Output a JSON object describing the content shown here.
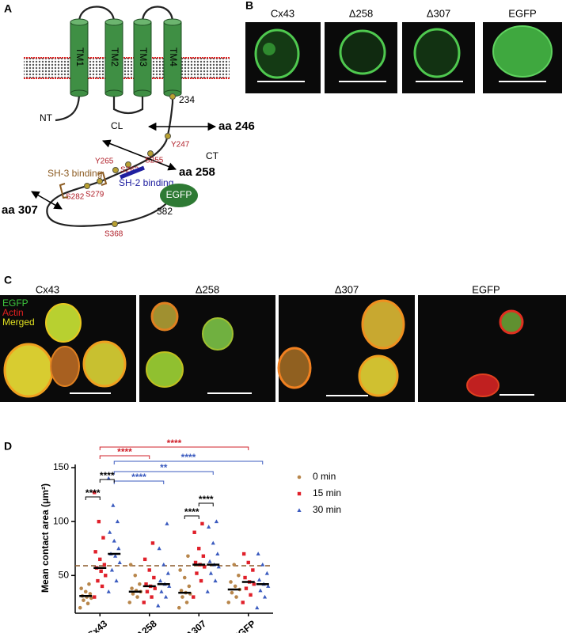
{
  "panel_a": {
    "label": "A",
    "tm": [
      "TM1",
      "TM2",
      "TM3",
      "TM4"
    ],
    "regions": [
      "NT",
      "CL",
      "CT"
    ],
    "truncations": [
      "aa 246",
      "aa 258",
      "aa 307"
    ],
    "residues": [
      "234",
      "382"
    ],
    "sites": [
      "Y247",
      "S255",
      "S262",
      "Y265",
      "S279",
      "S282",
      "S368"
    ],
    "domains": [
      "SH-3  binding",
      "SH-2  binding"
    ],
    "tag": "EGFP"
  },
  "panel_b": {
    "label": "B",
    "headers": [
      "Cx43",
      "Δ258",
      "Δ307",
      "EGFP"
    ]
  },
  "panel_c": {
    "label": "C",
    "headers": [
      "Cx43",
      "Δ258",
      "Δ307",
      "EGFP"
    ],
    "legend": [
      "EGFP",
      "Actin",
      "Merged"
    ]
  },
  "chart_data": {
    "type": "dot",
    "label": "D",
    "y_label": "Mean contact area (μm²)",
    "categories": [
      "Cx43",
      "Δ258",
      "Δ307",
      "EGFP"
    ],
    "ylim": [
      15,
      150
    ],
    "yticks": [
      50,
      100,
      150
    ],
    "reference_line": 59,
    "series": [
      {
        "name": "0 min",
        "color": "#b8864b",
        "marker": "circle",
        "values": [
          [
            20,
            24,
            27,
            29,
            30,
            31,
            33,
            35,
            38,
            42
          ],
          [
            25,
            30,
            33,
            35,
            36,
            38,
            42,
            50,
            60
          ],
          [
            20,
            25,
            30,
            33,
            34,
            36,
            40,
            48,
            55,
            68
          ],
          [
            25,
            30,
            34,
            37,
            40,
            44,
            50,
            60
          ]
        ],
        "medians": [
          31,
          35,
          34,
          37
        ]
      },
      {
        "name": "15 min",
        "color": "#e0202a",
        "marker": "square",
        "values": [
          [
            30,
            40,
            45,
            50,
            54,
            57,
            60,
            65,
            72,
            85,
            100,
            127
          ],
          [
            25,
            30,
            35,
            38,
            40,
            42,
            48,
            55,
            65,
            80
          ],
          [
            30,
            45,
            52,
            58,
            60,
            62,
            68,
            75,
            90,
            98
          ],
          [
            25,
            32,
            38,
            42,
            44,
            48,
            55,
            62,
            70
          ]
        ],
        "medians": [
          57,
          40,
          60,
          44
        ]
      },
      {
        "name": "30 min",
        "color": "#3b5bbf",
        "marker": "triangle",
        "values": [
          [
            35,
            45,
            55,
            62,
            68,
            70,
            75,
            82,
            90,
            100,
            115,
            140
          ],
          [
            22,
            30,
            35,
            40,
            42,
            45,
            52,
            60,
            75,
            98
          ],
          [
            35,
            45,
            52,
            58,
            60,
            63,
            70,
            80,
            95,
            100
          ],
          [
            20,
            30,
            36,
            40,
            42,
            46,
            52,
            60,
            70
          ]
        ],
        "medians": [
          70,
          42,
          60,
          42
        ]
      }
    ],
    "significance": [
      {
        "label": "****",
        "color": "#d0202a"
      },
      {
        "label": "****",
        "color": "#d0202a"
      },
      {
        "label": "****",
        "color": "#3b5bbf"
      },
      {
        "label": "**",
        "color": "#3b5bbf"
      },
      {
        "label": "****",
        "color": "#3b5bbf"
      },
      {
        "label": "****",
        "color": "#000000"
      },
      {
        "label": "****",
        "color": "#000000"
      },
      {
        "label": "****",
        "color": "#000000"
      },
      {
        "label": "****",
        "color": "#000000"
      }
    ]
  }
}
